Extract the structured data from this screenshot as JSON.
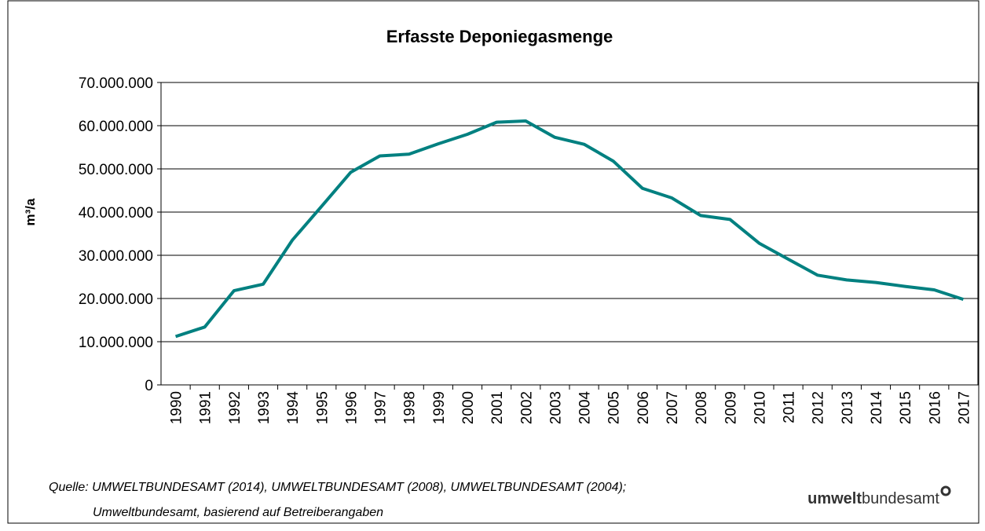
{
  "chart_data": {
    "type": "line",
    "title": "Erfasste Deponiegasmenge",
    "y_label": "m³/a",
    "categories": [
      "1990",
      "1991",
      "1992",
      "1993",
      "1994",
      "1995",
      "1996",
      "1997",
      "1998",
      "1999",
      "2000",
      "2001",
      "2002",
      "2003",
      "2004",
      "2005",
      "2006",
      "2007",
      "2008",
      "2009",
      "2010",
      "2011",
      "2012",
      "2013",
      "2014",
      "2015",
      "2016",
      "2017"
    ],
    "series": [
      {
        "name": "Erfasste Deponiegasmenge",
        "color": "#008080",
        "values": [
          11200000,
          13400000,
          21800000,
          23300000,
          33500000,
          41300000,
          49200000,
          53000000,
          53400000,
          55800000,
          58000000,
          60800000,
          61100000,
          57300000,
          55700000,
          51800000,
          45500000,
          43300000,
          39200000,
          38300000,
          32800000,
          29100000,
          25400000,
          24300000,
          23700000,
          22800000,
          22000000,
          19800000
        ]
      }
    ],
    "ylim": [
      0,
      70000000
    ],
    "yticks": [
      0,
      {
        "value": 10000000,
        "label": "10.000.000"
      },
      {
        "value": 20000000,
        "label": "20.000.000"
      },
      {
        "value": 30000000,
        "label": "30.000.000"
      },
      {
        "value": 40000000,
        "label": "40.000.000"
      },
      {
        "value": 50000000,
        "label": "50.000.000"
      },
      {
        "value": 60000000,
        "label": "60.000.000"
      },
      {
        "value": 70000000,
        "label": "70.000.000"
      }
    ],
    "grid": true
  },
  "source": [
    "Quelle: UMWELTBUNDESAMT (2014), UMWELTBUNDESAMT (2008), UMWELTBUNDESAMT (2004);",
    "Umweltbundesamt, basierend auf Betreiberangaben"
  ],
  "logo": {
    "bold": "umwelt",
    "rest": "bundesamt"
  }
}
